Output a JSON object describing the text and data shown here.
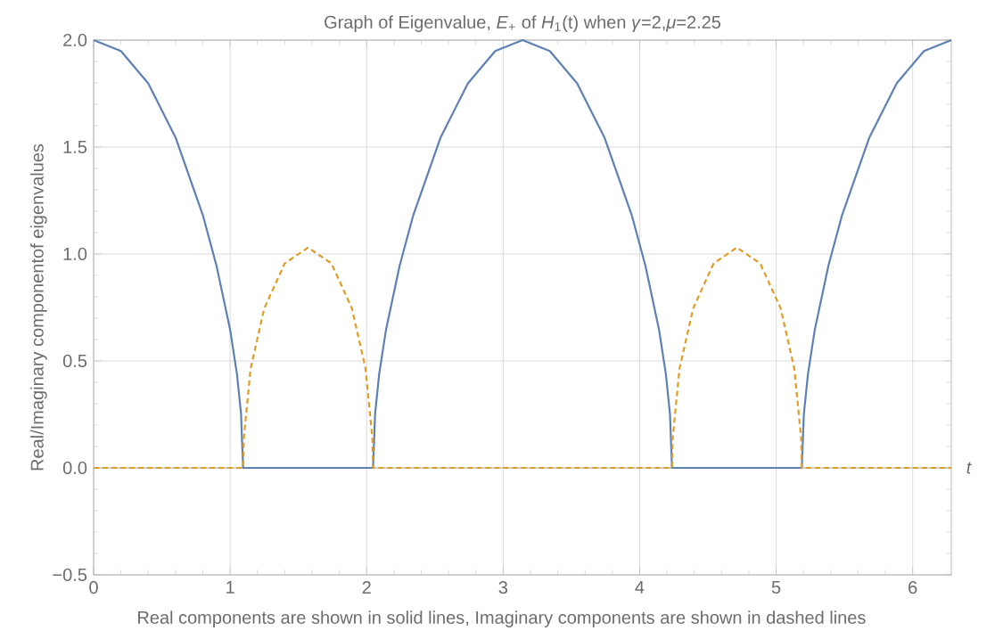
{
  "chart_data": {
    "type": "line",
    "title": "Graph of Eigenvalue, *E*$_{+}$ of *H*$_{1}$(t) when *γ*=2,*μ*=2.25",
    "xlabel": "*t*",
    "ylabel": "Real/Imaginary componentof eigenvalues",
    "annotations": [
      "Real components are shown in solid lines, Imaginary components are shown in dashed lines"
    ],
    "x": [
      0,
      0.2,
      0.4,
      0.6,
      0.8,
      0.9,
      1.0,
      1.05,
      1.08,
      1.095,
      1.1,
      1.15,
      1.25,
      1.4,
      1.571,
      1.742,
      1.892,
      1.992,
      2.042,
      2.047,
      2.062,
      2.092,
      2.142,
      2.242,
      2.342,
      2.542,
      2.742,
      2.942,
      3.142,
      3.342,
      3.542,
      3.742,
      3.942,
      4.042,
      4.142,
      4.192,
      4.222,
      4.237,
      4.242,
      4.292,
      4.392,
      4.542,
      4.712,
      4.883,
      5.033,
      5.133,
      5.183,
      5.188,
      5.203,
      5.233,
      5.283,
      5.383,
      5.483,
      5.683,
      5.883,
      6.083,
      6.283
    ],
    "series": [
      {
        "color": "#5e81b5",
        "line_style": "solid",
        "values": [
          2,
          1.949,
          1.798,
          1.545,
          1.182,
          0.946,
          0.646,
          0.439,
          0.253,
          0,
          0,
          0,
          0,
          0,
          0,
          0,
          0,
          0,
          0,
          0,
          0.253,
          0.439,
          0.646,
          0.946,
          1.182,
          1.545,
          1.798,
          1.949,
          2,
          1.949,
          1.798,
          1.545,
          1.182,
          0.946,
          0.646,
          0.439,
          0.253,
          0,
          0,
          0,
          0,
          0,
          0,
          0,
          0,
          0,
          0,
          0,
          0.253,
          0.439,
          0.646,
          0.946,
          1.182,
          1.545,
          1.798,
          1.949,
          2
        ]
      },
      {
        "color": "#e19c24",
        "line_style": "dashed",
        "values": [
          0,
          0,
          0,
          0,
          0,
          0,
          0,
          0,
          0,
          0,
          0.138,
          0.464,
          0.746,
          0.956,
          1.03,
          0.956,
          0.746,
          0.464,
          0.138,
          0,
          0,
          0,
          0,
          0,
          0,
          0,
          0,
          0,
          0,
          0,
          0,
          0,
          0,
          0,
          0,
          0,
          0,
          0,
          0.138,
          0.464,
          0.746,
          0.956,
          1.03,
          0.956,
          0.746,
          0.464,
          0.138,
          0,
          0,
          0,
          0,
          0,
          0,
          0,
          0,
          0,
          0
        ]
      }
    ],
    "xlim": [
      0,
      6.283
    ],
    "ylim": [
      -0.5,
      2
    ],
    "xticks": [
      0,
      1,
      2,
      3,
      4,
      5,
      6
    ],
    "yticks": [
      {
        "value": -0.5,
        "label": "−0.5"
      },
      {
        "value": 0,
        "label": "0.0"
      },
      {
        "value": 0.5,
        "label": "0.5"
      },
      {
        "value": 1,
        "label": "1.0"
      },
      {
        "value": 1.5,
        "label": "1.5"
      },
      {
        "value": 2,
        "label": "2.0"
      }
    ],
    "grid": true
  }
}
